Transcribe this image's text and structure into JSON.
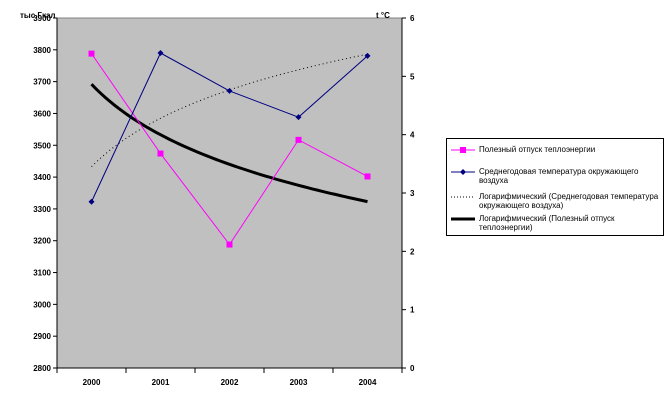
{
  "chart_data": {
    "type": "line",
    "categories": [
      "2000",
      "2001",
      "2002",
      "2003",
      "2004"
    ],
    "y_left": {
      "label": "тыс.Гкал",
      "ylim": [
        2800,
        3900
      ],
      "ticks": [
        "2800",
        "2900",
        "3000",
        "3100",
        "3200",
        "3300",
        "3400",
        "3500",
        "3600",
        "3700",
        "3800",
        "3900"
      ]
    },
    "y_right": {
      "label": "t °C",
      "ylim": [
        0,
        6
      ],
      "ticks": [
        "0",
        "1",
        "2",
        "3",
        "4",
        "5",
        "6"
      ]
    },
    "series": [
      {
        "name": "Полезный отпуск теплоэнергии",
        "axis": "left",
        "values": [
          3788,
          3474,
          3188,
          3517,
          3402
        ],
        "color": "#ff00ff",
        "marker": "square"
      },
      {
        "name": "Среднегодовая температура окружающего воздуха",
        "axis": "right",
        "values": [
          2.85,
          5.4,
          4.75,
          4.3,
          5.35
        ],
        "color": "#000080",
        "marker": "diamond"
      },
      {
        "name": "Логарифмический (Среднегодовая температура окружающего воздуха)",
        "axis": "right",
        "type": "log-trend",
        "values": [
          3.45,
          4.25,
          4.75,
          5.1,
          5.38
        ],
        "color": "#000000",
        "style": "dotted"
      },
      {
        "name": "Логарифмический (Полезный отпуск теплоэнергии)",
        "axis": "left",
        "type": "log-trend",
        "values": [
          3692,
          3528,
          3432,
          3364,
          3323
        ],
        "color": "#000000",
        "style": "thick"
      }
    ],
    "plot_background": "#c0c0c0",
    "grid": false,
    "legend_position": "right"
  }
}
